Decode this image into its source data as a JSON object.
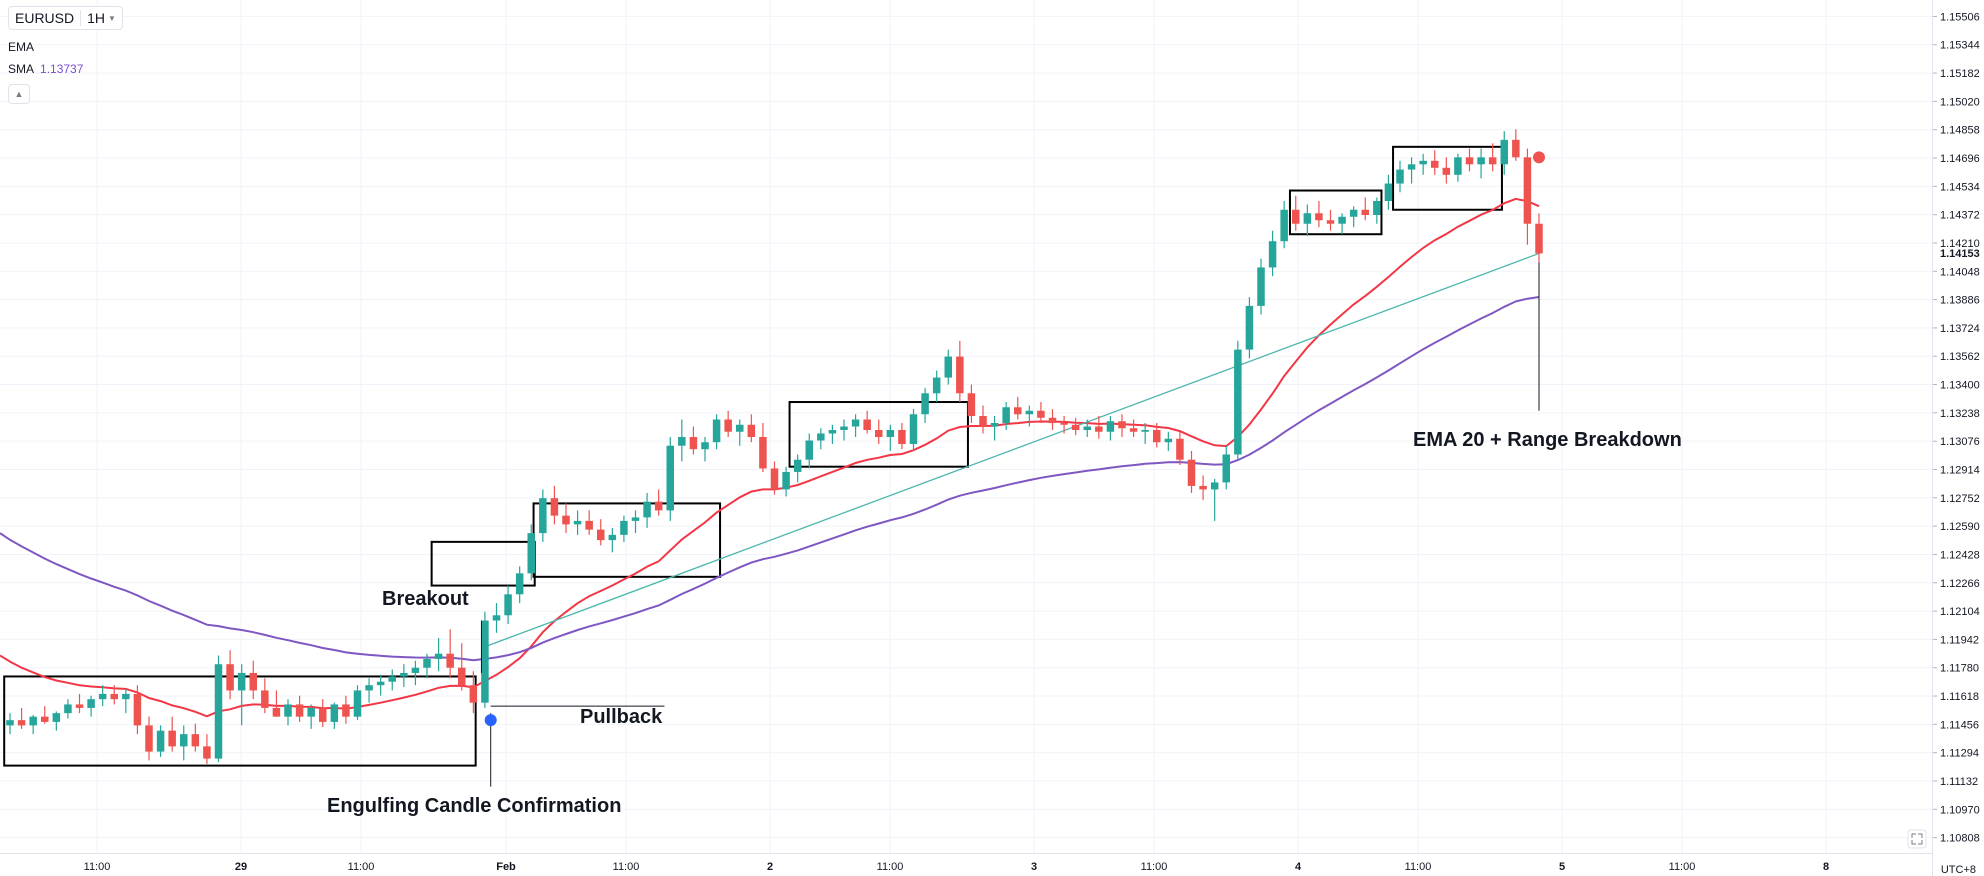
{
  "legend": {
    "symbol": "EURUSD",
    "timeframe": "1H",
    "ema_label": "EMA",
    "sma_label": "SMA",
    "sma_value": "1.13737"
  },
  "timezone": "UTC+8",
  "colors": {
    "up": "#26a69a",
    "down": "#ef5350",
    "ema": "#f23645",
    "sma": "#7e57c2",
    "trendline": "#4db6ac",
    "box": "#000000"
  },
  "chart_data": {
    "type": "candlestick",
    "symbol": "EURUSD",
    "timeframe": "1H",
    "y_range": [
      1.1072,
      1.156
    ],
    "price_ticks": [
      "1.15506",
      "1.15344",
      "1.15182",
      "1.15020",
      "1.14858",
      "1.14696",
      "1.14534",
      "1.14372",
      "1.14210",
      "1.14048",
      "1.13886",
      "1.13724",
      "1.13562",
      "1.13400",
      "1.13238",
      "1.13076",
      "1.12914",
      "1.12752",
      "1.12590",
      "1.12428",
      "1.12266",
      "1.12104",
      "1.11942",
      "1.11780",
      "1.11618",
      "1.11456",
      "1.11294",
      "1.11132",
      "1.10970",
      "1.10808"
    ],
    "last_price_label": "1.14153",
    "time_ticks": [
      {
        "label": "11:00",
        "major": false
      },
      {
        "label": "29",
        "major": true
      },
      {
        "label": "11:00",
        "major": false
      },
      {
        "label": "Feb",
        "major": true
      },
      {
        "label": "11:00",
        "major": false
      },
      {
        "label": "2",
        "major": true
      },
      {
        "label": "11:00",
        "major": false
      },
      {
        "label": "3",
        "major": true
      },
      {
        "label": "11:00",
        "major": false
      },
      {
        "label": "4",
        "major": true
      },
      {
        "label": "11:00",
        "major": false
      },
      {
        "label": "5",
        "major": true
      },
      {
        "label": "11:00",
        "major": false
      },
      {
        "label": "8",
        "major": true
      }
    ],
    "candles": [
      [
        1.1145,
        1.1152,
        1.114,
        1.1148
      ],
      [
        1.1148,
        1.1155,
        1.1143,
        1.1145
      ],
      [
        1.1145,
        1.1151,
        1.114,
        1.115
      ],
      [
        1.115,
        1.1156,
        1.1146,
        1.1147
      ],
      [
        1.1147,
        1.1153,
        1.1142,
        1.1152
      ],
      [
        1.1152,
        1.116,
        1.1149,
        1.1157
      ],
      [
        1.1157,
        1.1163,
        1.1152,
        1.1155
      ],
      [
        1.1155,
        1.1162,
        1.115,
        1.116
      ],
      [
        1.116,
        1.1168,
        1.1156,
        1.1163
      ],
      [
        1.1163,
        1.1168,
        1.1157,
        1.116
      ],
      [
        1.116,
        1.1166,
        1.1152,
        1.1163
      ],
      [
        1.1163,
        1.1168,
        1.114,
        1.1145
      ],
      [
        1.1145,
        1.115,
        1.1125,
        1.113
      ],
      [
        1.113,
        1.1145,
        1.1127,
        1.1142
      ],
      [
        1.1142,
        1.115,
        1.113,
        1.1133
      ],
      [
        1.1133,
        1.1145,
        1.1125,
        1.114
      ],
      [
        1.114,
        1.1146,
        1.113,
        1.1133
      ],
      [
        1.1133,
        1.114,
        1.1123,
        1.1126
      ],
      [
        1.1126,
        1.1185,
        1.1124,
        1.118
      ],
      [
        1.118,
        1.1188,
        1.116,
        1.1165
      ],
      [
        1.1165,
        1.118,
        1.1145,
        1.1175
      ],
      [
        1.1175,
        1.1182,
        1.116,
        1.1165
      ],
      [
        1.1165,
        1.1172,
        1.1152,
        1.1155
      ],
      [
        1.1155,
        1.1165,
        1.115,
        1.115
      ],
      [
        1.115,
        1.116,
        1.1145,
        1.1157
      ],
      [
        1.1157,
        1.1162,
        1.1147,
        1.115
      ],
      [
        1.115,
        1.1157,
        1.1143,
        1.1155
      ],
      [
        1.1155,
        1.116,
        1.1144,
        1.1147
      ],
      [
        1.1147,
        1.1158,
        1.1143,
        1.1157
      ],
      [
        1.1157,
        1.1162,
        1.1146,
        1.115
      ],
      [
        1.115,
        1.1168,
        1.1148,
        1.1165
      ],
      [
        1.1165,
        1.1172,
        1.1158,
        1.1168
      ],
      [
        1.1168,
        1.1174,
        1.1162,
        1.117
      ],
      [
        1.117,
        1.1177,
        1.1165,
        1.1173
      ],
      [
        1.1173,
        1.118,
        1.1167,
        1.1175
      ],
      [
        1.1175,
        1.1182,
        1.1168,
        1.1178
      ],
      [
        1.1178,
        1.1186,
        1.1172,
        1.1183
      ],
      [
        1.1183,
        1.1195,
        1.1176,
        1.1186
      ],
      [
        1.1186,
        1.12,
        1.1172,
        1.1178
      ],
      [
        1.1178,
        1.1192,
        1.1165,
        1.1168
      ],
      [
        1.1168,
        1.1176,
        1.1152,
        1.1158
      ],
      [
        1.1158,
        1.121,
        1.1155,
        1.1205
      ],
      [
        1.1205,
        1.1215,
        1.1198,
        1.1208
      ],
      [
        1.1208,
        1.1225,
        1.1203,
        1.122
      ],
      [
        1.122,
        1.1236,
        1.1215,
        1.1232
      ],
      [
        1.1232,
        1.126,
        1.1228,
        1.1255
      ],
      [
        1.1255,
        1.128,
        1.125,
        1.1275
      ],
      [
        1.1275,
        1.1282,
        1.126,
        1.1265
      ],
      [
        1.1265,
        1.1272,
        1.1255,
        1.126
      ],
      [
        1.126,
        1.1268,
        1.1254,
        1.1262
      ],
      [
        1.1262,
        1.1268,
        1.1254,
        1.1257
      ],
      [
        1.1257,
        1.1263,
        1.1248,
        1.1251
      ],
      [
        1.1251,
        1.1258,
        1.1244,
        1.1254
      ],
      [
        1.1254,
        1.1265,
        1.125,
        1.1262
      ],
      [
        1.1262,
        1.1268,
        1.1255,
        1.1264
      ],
      [
        1.1264,
        1.1278,
        1.1258,
        1.1273
      ],
      [
        1.1273,
        1.128,
        1.1265,
        1.1268
      ],
      [
        1.1268,
        1.131,
        1.1262,
        1.1305
      ],
      [
        1.1305,
        1.132,
        1.1296,
        1.131
      ],
      [
        1.131,
        1.1316,
        1.13,
        1.1303
      ],
      [
        1.1303,
        1.131,
        1.1296,
        1.1307
      ],
      [
        1.1307,
        1.1323,
        1.1303,
        1.132
      ],
      [
        1.132,
        1.1325,
        1.131,
        1.1313
      ],
      [
        1.1313,
        1.132,
        1.1305,
        1.1317
      ],
      [
        1.1317,
        1.1323,
        1.1307,
        1.131
      ],
      [
        1.131,
        1.1318,
        1.129,
        1.1292
      ],
      [
        1.1292,
        1.1296,
        1.1277,
        1.128
      ],
      [
        1.128,
        1.1293,
        1.1276,
        1.129
      ],
      [
        1.129,
        1.13,
        1.1284,
        1.1297
      ],
      [
        1.1297,
        1.1312,
        1.1292,
        1.1308
      ],
      [
        1.1308,
        1.1315,
        1.1303,
        1.1312
      ],
      [
        1.1312,
        1.1317,
        1.1306,
        1.1314
      ],
      [
        1.1314,
        1.132,
        1.1308,
        1.1316
      ],
      [
        1.1316,
        1.1323,
        1.131,
        1.132
      ],
      [
        1.132,
        1.1325,
        1.1312,
        1.1314
      ],
      [
        1.1314,
        1.132,
        1.1306,
        1.131
      ],
      [
        1.131,
        1.1317,
        1.1302,
        1.1314
      ],
      [
        1.1314,
        1.1318,
        1.1303,
        1.1306
      ],
      [
        1.1306,
        1.1326,
        1.1302,
        1.1323
      ],
      [
        1.1323,
        1.1338,
        1.1318,
        1.1335
      ],
      [
        1.1335,
        1.1348,
        1.133,
        1.1344
      ],
      [
        1.1344,
        1.136,
        1.134,
        1.1356
      ],
      [
        1.1356,
        1.1365,
        1.133,
        1.1335
      ],
      [
        1.1335,
        1.134,
        1.1318,
        1.1322
      ],
      [
        1.1322,
        1.1328,
        1.1312,
        1.1316
      ],
      [
        1.1316,
        1.1322,
        1.1308,
        1.1318
      ],
      [
        1.1318,
        1.133,
        1.1314,
        1.1327
      ],
      [
        1.1327,
        1.1333,
        1.132,
        1.1323
      ],
      [
        1.1323,
        1.1328,
        1.1316,
        1.1325
      ],
      [
        1.1325,
        1.133,
        1.1318,
        1.1321
      ],
      [
        1.1321,
        1.1326,
        1.1314,
        1.1318
      ],
      [
        1.1318,
        1.1322,
        1.1312,
        1.1317
      ],
      [
        1.1317,
        1.1321,
        1.1311,
        1.1314
      ],
      [
        1.1314,
        1.132,
        1.131,
        1.1316
      ],
      [
        1.1316,
        1.1322,
        1.1309,
        1.1313
      ],
      [
        1.1313,
        1.1322,
        1.1308,
        1.1319
      ],
      [
        1.1319,
        1.1323,
        1.131,
        1.1315
      ],
      [
        1.1315,
        1.132,
        1.131,
        1.1313
      ],
      [
        1.1313,
        1.1318,
        1.1306,
        1.1314
      ],
      [
        1.1314,
        1.1318,
        1.1304,
        1.1307
      ],
      [
        1.1307,
        1.1313,
        1.1302,
        1.1309
      ],
      [
        1.1309,
        1.1313,
        1.1294,
        1.1297
      ],
      [
        1.1297,
        1.1302,
        1.1278,
        1.1282
      ],
      [
        1.1282,
        1.1288,
        1.1274,
        1.128
      ],
      [
        1.128,
        1.1286,
        1.1262,
        1.1284
      ],
      [
        1.1284,
        1.1305,
        1.128,
        1.13
      ],
      [
        1.13,
        1.1365,
        1.1297,
        1.136
      ],
      [
        1.136,
        1.139,
        1.1355,
        1.1385
      ],
      [
        1.1385,
        1.1412,
        1.138,
        1.1407
      ],
      [
        1.1407,
        1.1428,
        1.1402,
        1.1422
      ],
      [
        1.1422,
        1.1445,
        1.1418,
        1.144
      ],
      [
        1.144,
        1.1448,
        1.1428,
        1.1432
      ],
      [
        1.1432,
        1.1443,
        1.1425,
        1.1438
      ],
      [
        1.1438,
        1.1445,
        1.143,
        1.1434
      ],
      [
        1.1434,
        1.144,
        1.1428,
        1.1432
      ],
      [
        1.1432,
        1.1438,
        1.1426,
        1.1436
      ],
      [
        1.1436,
        1.1442,
        1.143,
        1.144
      ],
      [
        1.144,
        1.1447,
        1.1434,
        1.1437
      ],
      [
        1.1437,
        1.1447,
        1.1432,
        1.1445
      ],
      [
        1.1445,
        1.146,
        1.144,
        1.1455
      ],
      [
        1.1455,
        1.1468,
        1.145,
        1.1463
      ],
      [
        1.1463,
        1.147,
        1.1455,
        1.1466
      ],
      [
        1.1466,
        1.1472,
        1.146,
        1.1468
      ],
      [
        1.1468,
        1.1474,
        1.146,
        1.1464
      ],
      [
        1.1464,
        1.147,
        1.1455,
        1.146
      ],
      [
        1.146,
        1.1472,
        1.1456,
        1.147
      ],
      [
        1.147,
        1.1475,
        1.1462,
        1.1466
      ],
      [
        1.1466,
        1.1475,
        1.1458,
        1.147
      ],
      [
        1.147,
        1.1478,
        1.1462,
        1.1466
      ],
      [
        1.1466,
        1.1485,
        1.146,
        1.148
      ],
      [
        1.148,
        1.1486,
        1.1468,
        1.147
      ],
      [
        1.147,
        1.1475,
        1.142,
        1.1432
      ],
      [
        1.1432,
        1.1438,
        1.141,
        1.1415
      ]
    ],
    "ema20_label": "EMA 20",
    "annotations": [
      {
        "text": "Breakout"
      },
      {
        "text": "Pullback"
      },
      {
        "text": "Engulfing Candle Confirmation"
      },
      {
        "text": "EMA 20 + Range Breakdown"
      }
    ],
    "grid": true
  }
}
